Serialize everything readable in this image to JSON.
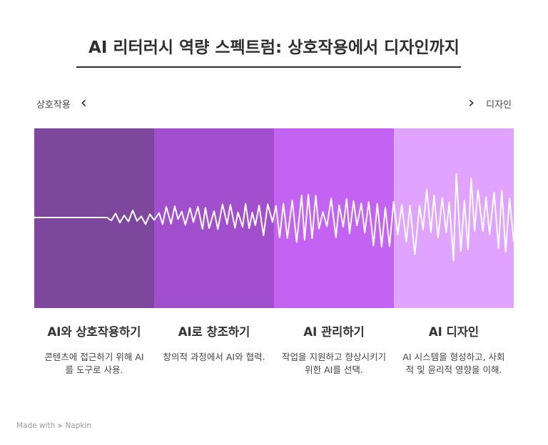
{
  "title": "AI 리터러시 역량 스펙트럼: 상호작용에서 디자인까지",
  "axis": {
    "left_label": "상호작용",
    "right_label": "디자인",
    "left_icon": "chevron-left-icon",
    "right_icon": "chevron-right-icon"
  },
  "colors": {
    "band_1": "#7e479e",
    "band_2": "#a24fce",
    "band_3": "#c462f4",
    "band_4": "#e0a3ff",
    "wave": "#ffffff",
    "title_rule": "#2f2f2f"
  },
  "stages": [
    {
      "title": "AI와 상호작용하기",
      "description": "콘텐츠에 접근하기 위해 AI를 도구로 사용."
    },
    {
      "title": "AI로 창조하기",
      "description": "창의적 과정에서 AI와 협력."
    },
    {
      "title": "AI 관리하기",
      "description": "작업을 지원하고 향상시키기 위한 AI를 선택."
    },
    {
      "title": "AI 디자인",
      "description": "AI 시스템을 형성하고, 사회적 및 윤리적 영향을 이해."
    }
  ],
  "footer": {
    "made_with": "Made with",
    "brand": "Napkin"
  }
}
